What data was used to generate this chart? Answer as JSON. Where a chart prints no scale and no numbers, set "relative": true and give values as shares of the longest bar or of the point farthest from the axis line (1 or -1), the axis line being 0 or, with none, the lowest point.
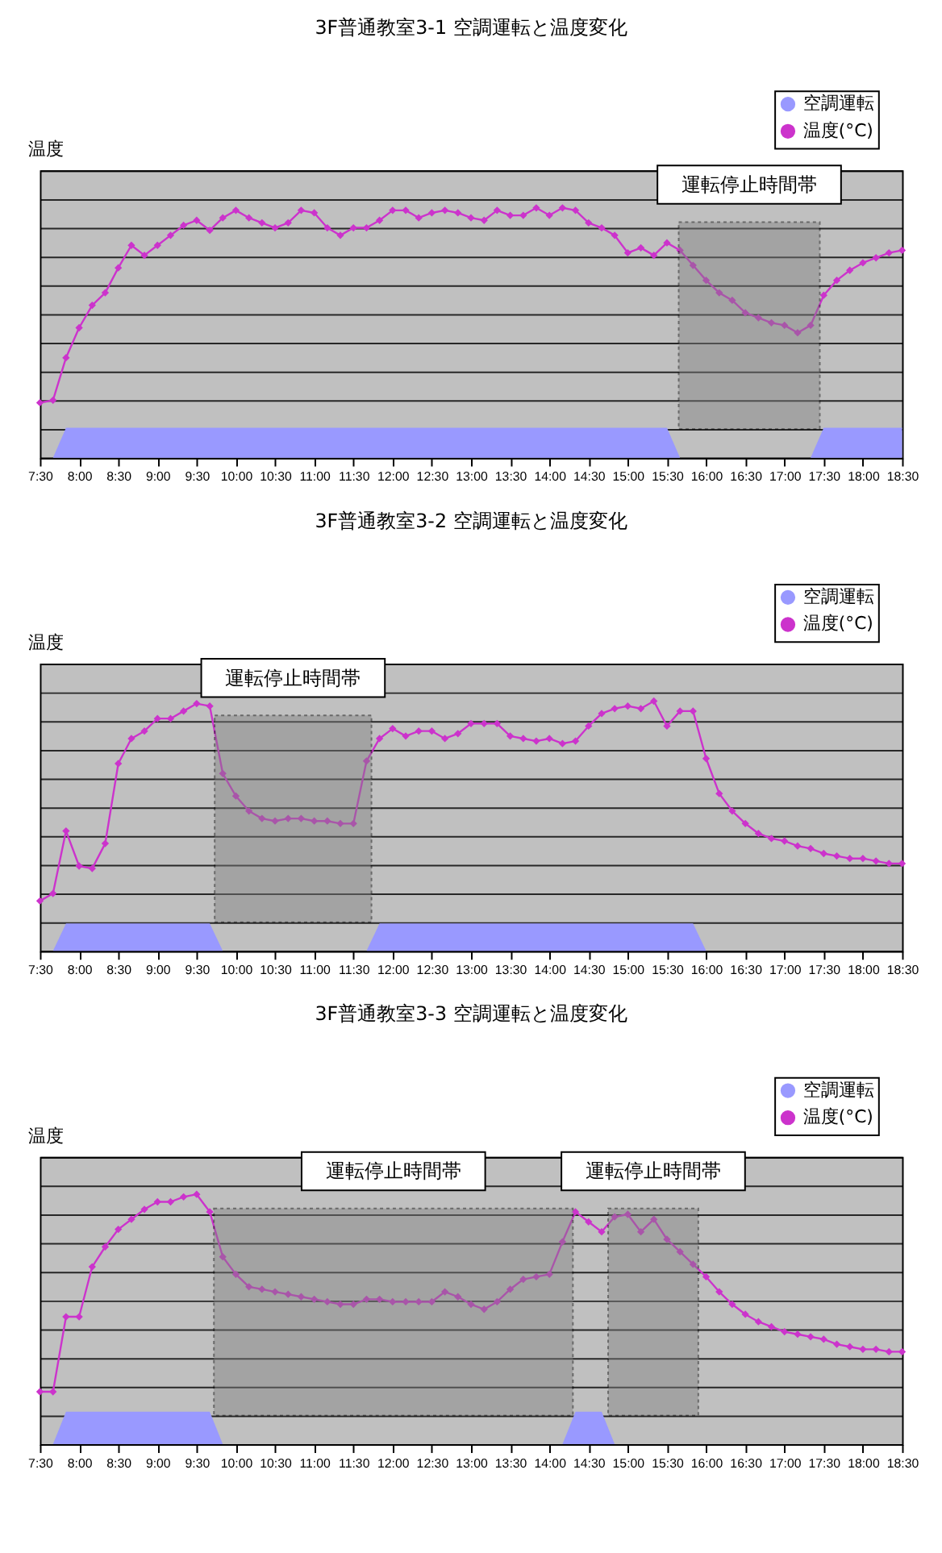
{
  "chart_data": [
    {
      "type": "line",
      "title": "3F普通教室3-1 空調運転と温度変化",
      "ylabel": "温度",
      "relative": true,
      "grid": true,
      "legend": "top right",
      "x": [
        7.5,
        7.667,
        7.833,
        8,
        8.167,
        8.333,
        8.5,
        8.667,
        8.833,
        9,
        9.167,
        9.333,
        9.5,
        9.667,
        9.833,
        10,
        10.167,
        10.333,
        10.5,
        10.667,
        10.833,
        11,
        11.167,
        11.333,
        11.5,
        11.667,
        11.833,
        12,
        12.167,
        12.333,
        12.5,
        12.667,
        12.833,
        13,
        13.167,
        13.333,
        13.5,
        13.667,
        13.833,
        14,
        14.167,
        14.333,
        14.5,
        14.667,
        14.833,
        15,
        15.167,
        15.333,
        15.5,
        15.667,
        15.833,
        16,
        16.167,
        16.333,
        16.5,
        16.667,
        16.833,
        17,
        17.167,
        17.333,
        17.5,
        17.667,
        17.833,
        18,
        18.167,
        18.333,
        18.5
      ],
      "xlim": [
        7.5,
        18.5
      ],
      "xticks": [
        {
          "value": 7.5,
          "label": "7:30"
        },
        {
          "value": 8,
          "label": "8:00"
        },
        {
          "value": 8.5,
          "label": "8:30"
        },
        {
          "value": 9,
          "label": "9:00"
        },
        {
          "value": 9.5,
          "label": "9:30"
        },
        {
          "value": 10,
          "label": "10:00"
        },
        {
          "value": 10.5,
          "label": "10:30"
        },
        {
          "value": 11,
          "label": "11:00"
        },
        {
          "value": 11.5,
          "label": "11:30"
        },
        {
          "value": 12,
          "label": "12:00"
        },
        {
          "value": 12.5,
          "label": "12:30"
        },
        {
          "value": 13,
          "label": "13:00"
        },
        {
          "value": 13.5,
          "label": "13:30"
        },
        {
          "value": 14,
          "label": "14:00"
        },
        {
          "value": 14.5,
          "label": "14:30"
        },
        {
          "value": 15,
          "label": "15:00"
        },
        {
          "value": 15.5,
          "label": "15:30"
        },
        {
          "value": 16,
          "label": "16:00"
        },
        {
          "value": 16.5,
          "label": "16:30"
        },
        {
          "value": 17,
          "label": "17:00"
        },
        {
          "value": 17.5,
          "label": "17:30"
        },
        {
          "value": 18,
          "label": "18:00"
        },
        {
          "value": 18.5,
          "label": "18:30"
        }
      ],
      "series": [
        {
          "name": "空調運転",
          "type": "area",
          "color": "#9999ff",
          "values": [
            0,
            0,
            0.12,
            0.12,
            0.12,
            0.12,
            0.12,
            0.12,
            0.12,
            0.12,
            0.12,
            0.12,
            0.12,
            0.12,
            0.12,
            0.12,
            0.12,
            0.12,
            0.12,
            0.12,
            0.12,
            0.12,
            0.12,
            0.12,
            0.12,
            0.12,
            0.12,
            0.12,
            0.12,
            0.12,
            0.12,
            0.12,
            0.12,
            0.12,
            0.12,
            0.12,
            0.12,
            0.12,
            0.12,
            0.12,
            0.12,
            0.12,
            0.12,
            0.12,
            0.12,
            0.12,
            0.12,
            0.12,
            0.12,
            0,
            0,
            0,
            0,
            0,
            0,
            0,
            0,
            0,
            0,
            0,
            0.12,
            0.12,
            0.12,
            0.12,
            0.12,
            0.12,
            0.12
          ]
        },
        {
          "name": "温度(°C)",
          "marker": "diamond",
          "color": "#cc33cc",
          "values": [
            0.22,
            0.23,
            0.4,
            0.52,
            0.61,
            0.66,
            0.76,
            0.85,
            0.81,
            0.85,
            0.89,
            0.93,
            0.95,
            0.91,
            0.96,
            0.99,
            0.96,
            0.94,
            0.92,
            0.94,
            0.99,
            0.98,
            0.92,
            0.89,
            0.92,
            0.92,
            0.95,
            0.99,
            0.99,
            0.96,
            0.98,
            0.99,
            0.98,
            0.96,
            0.95,
            0.99,
            0.97,
            0.97,
            1.0,
            0.97,
            1.0,
            0.99,
            0.94,
            0.92,
            0.89,
            0.82,
            0.84,
            0.81,
            0.86,
            0.83,
            0.77,
            0.71,
            0.66,
            0.63,
            0.58,
            0.56,
            0.54,
            0.53,
            0.5,
            0.53,
            0.65,
            0.71,
            0.75,
            0.78,
            0.8,
            0.82,
            0.83
          ]
        }
      ],
      "bands": [
        {
          "axis": "x",
          "from": 15.65,
          "to": 17.45,
          "label": "運転停止時間帯"
        }
      ]
    },
    {
      "type": "line",
      "title": "3F普通教室3-2 空調運転と温度変化",
      "ylabel": "温度",
      "relative": true,
      "grid": true,
      "legend": "top right",
      "x": [
        7.5,
        7.667,
        7.833,
        8,
        8.167,
        8.333,
        8.5,
        8.667,
        8.833,
        9,
        9.167,
        9.333,
        9.5,
        9.667,
        9.833,
        10,
        10.167,
        10.333,
        10.5,
        10.667,
        10.833,
        11,
        11.167,
        11.333,
        11.5,
        11.667,
        11.833,
        12,
        12.167,
        12.333,
        12.5,
        12.667,
        12.833,
        13,
        13.167,
        13.333,
        13.5,
        13.667,
        13.833,
        14,
        14.167,
        14.333,
        14.5,
        14.667,
        14.833,
        15,
        15.167,
        15.333,
        15.5,
        15.667,
        15.833,
        16,
        16.167,
        16.333,
        16.5,
        16.667,
        16.833,
        17,
        17.167,
        17.333,
        17.5,
        17.667,
        17.833,
        18,
        18.167,
        18.333,
        18.5
      ],
      "xlim": [
        7.5,
        18.5
      ],
      "xticks": [
        {
          "value": 7.5,
          "label": "7:30"
        },
        {
          "value": 8,
          "label": "8:00"
        },
        {
          "value": 8.5,
          "label": "8:30"
        },
        {
          "value": 9,
          "label": "9:00"
        },
        {
          "value": 9.5,
          "label": "9:30"
        },
        {
          "value": 10,
          "label": "10:00"
        },
        {
          "value": 10.5,
          "label": "10:30"
        },
        {
          "value": 11,
          "label": "11:00"
        },
        {
          "value": 11.5,
          "label": "11:30"
        },
        {
          "value": 12,
          "label": "12:00"
        },
        {
          "value": 12.5,
          "label": "12:30"
        },
        {
          "value": 13,
          "label": "13:00"
        },
        {
          "value": 13.5,
          "label": "13:30"
        },
        {
          "value": 14,
          "label": "14:00"
        },
        {
          "value": 14.5,
          "label": "14:30"
        },
        {
          "value": 15,
          "label": "15:00"
        },
        {
          "value": 15.5,
          "label": "15:30"
        },
        {
          "value": 16,
          "label": "16:00"
        },
        {
          "value": 16.5,
          "label": "16:30"
        },
        {
          "value": 17,
          "label": "17:00"
        },
        {
          "value": 17.5,
          "label": "17:30"
        },
        {
          "value": 18,
          "label": "18:00"
        },
        {
          "value": 18.5,
          "label": "18:30"
        }
      ],
      "series": [
        {
          "name": "空調運転",
          "type": "area",
          "color": "#9999ff",
          "values": [
            0,
            0,
            0.11,
            0.11,
            0.11,
            0.11,
            0.11,
            0.11,
            0.11,
            0.11,
            0.11,
            0.11,
            0.11,
            0.11,
            0,
            0,
            0,
            0,
            0,
            0,
            0,
            0,
            0,
            0,
            0,
            0,
            0.11,
            0.11,
            0.11,
            0.11,
            0.11,
            0.11,
            0.11,
            0.11,
            0.11,
            0.11,
            0.11,
            0.11,
            0.11,
            0.11,
            0.11,
            0.11,
            0.11,
            0.11,
            0.11,
            0.11,
            0.11,
            0.11,
            0.11,
            0.11,
            0.11,
            0,
            0,
            0,
            0,
            0,
            0,
            0,
            0,
            0,
            0,
            0,
            0,
            0,
            0,
            0,
            0
          ]
        },
        {
          "name": "温度(°C)",
          "marker": "diamond",
          "color": "#cc33cc",
          "values": [
            0.2,
            0.23,
            0.48,
            0.34,
            0.33,
            0.43,
            0.75,
            0.85,
            0.88,
            0.93,
            0.93,
            0.96,
            0.99,
            0.98,
            0.71,
            0.62,
            0.56,
            0.53,
            0.52,
            0.53,
            0.53,
            0.52,
            0.52,
            0.51,
            0.51,
            0.76,
            0.85,
            0.89,
            0.86,
            0.88,
            0.88,
            0.85,
            0.87,
            0.91,
            0.91,
            0.91,
            0.86,
            0.85,
            0.84,
            0.85,
            0.83,
            0.84,
            0.9,
            0.95,
            0.97,
            0.98,
            0.97,
            1.0,
            0.9,
            0.96,
            0.96,
            0.77,
            0.63,
            0.56,
            0.51,
            0.47,
            0.45,
            0.44,
            0.42,
            0.41,
            0.39,
            0.38,
            0.37,
            0.37,
            0.36,
            0.35,
            0.35
          ]
        }
      ],
      "bands": [
        {
          "axis": "x",
          "from": 9.73,
          "to": 11.73,
          "label": "運転停止時間帯"
        }
      ]
    },
    {
      "type": "line",
      "title": "3F普通教室3-3 空調運転と温度変化",
      "ylabel": "温度",
      "relative": true,
      "grid": true,
      "legend": "top right",
      "x": [
        7.5,
        7.667,
        7.833,
        8,
        8.167,
        8.333,
        8.5,
        8.667,
        8.833,
        9,
        9.167,
        9.333,
        9.5,
        9.667,
        9.833,
        10,
        10.167,
        10.333,
        10.5,
        10.667,
        10.833,
        11,
        11.167,
        11.333,
        11.5,
        11.667,
        11.833,
        12,
        12.167,
        12.333,
        12.5,
        12.667,
        12.833,
        13,
        13.167,
        13.333,
        13.5,
        13.667,
        13.833,
        14,
        14.167,
        14.333,
        14.5,
        14.667,
        14.833,
        15,
        15.167,
        15.333,
        15.5,
        15.667,
        15.833,
        16,
        16.167,
        16.333,
        16.5,
        16.667,
        16.833,
        17,
        17.167,
        17.333,
        17.5,
        17.667,
        17.833,
        18,
        18.167,
        18.333,
        18.5
      ],
      "xlim": [
        7.5,
        18.5
      ],
      "xticks": [
        {
          "value": 7.5,
          "label": "7:30"
        },
        {
          "value": 8,
          "label": "8:00"
        },
        {
          "value": 8.5,
          "label": "8:30"
        },
        {
          "value": 9,
          "label": "9:00"
        },
        {
          "value": 9.5,
          "label": "9:30"
        },
        {
          "value": 10,
          "label": "10:00"
        },
        {
          "value": 10.5,
          "label": "10:30"
        },
        {
          "value": 11,
          "label": "11:00"
        },
        {
          "value": 11.5,
          "label": "11:30"
        },
        {
          "value": 12,
          "label": "12:00"
        },
        {
          "value": 12.5,
          "label": "12:30"
        },
        {
          "value": 13,
          "label": "13:00"
        },
        {
          "value": 13.5,
          "label": "13:30"
        },
        {
          "value": 14,
          "label": "14:00"
        },
        {
          "value": 14.5,
          "label": "14:30"
        },
        {
          "value": 15,
          "label": "15:00"
        },
        {
          "value": 15.5,
          "label": "15:30"
        },
        {
          "value": 16,
          "label": "16:00"
        },
        {
          "value": 16.5,
          "label": "16:30"
        },
        {
          "value": 17,
          "label": "17:00"
        },
        {
          "value": 17.5,
          "label": "17:30"
        },
        {
          "value": 18,
          "label": "18:00"
        },
        {
          "value": 18.5,
          "label": "18:30"
        }
      ],
      "series": [
        {
          "name": "空調運転",
          "type": "area",
          "color": "#9999ff",
          "values": [
            0,
            0,
            0.13,
            0.13,
            0.13,
            0.13,
            0.13,
            0.13,
            0.13,
            0.13,
            0.13,
            0.13,
            0.13,
            0.13,
            0,
            0,
            0,
            0,
            0,
            0,
            0,
            0,
            0,
            0,
            0,
            0,
            0,
            0,
            0,
            0,
            0,
            0,
            0,
            0,
            0,
            0,
            0,
            0,
            0,
            0,
            0,
            0.13,
            0.13,
            0.13,
            0,
            0,
            0,
            0,
            0,
            0,
            0,
            0,
            0,
            0,
            0,
            0,
            0,
            0,
            0,
            0,
            0,
            0,
            0,
            0,
            0,
            0,
            0
          ]
        },
        {
          "name": "温度(°C)",
          "marker": "diamond",
          "color": "#cc33cc",
          "values": [
            0.21,
            0.21,
            0.51,
            0.51,
            0.71,
            0.79,
            0.86,
            0.9,
            0.94,
            0.97,
            0.97,
            0.99,
            1.0,
            0.93,
            0.75,
            0.68,
            0.63,
            0.62,
            0.61,
            0.6,
            0.59,
            0.58,
            0.57,
            0.56,
            0.56,
            0.58,
            0.58,
            0.57,
            0.57,
            0.57,
            0.57,
            0.61,
            0.59,
            0.56,
            0.54,
            0.57,
            0.62,
            0.66,
            0.67,
            0.68,
            0.81,
            0.93,
            0.89,
            0.85,
            0.91,
            0.92,
            0.85,
            0.9,
            0.82,
            0.77,
            0.72,
            0.67,
            0.61,
            0.56,
            0.52,
            0.49,
            0.47,
            0.45,
            0.44,
            0.43,
            0.42,
            0.4,
            0.39,
            0.38,
            0.38,
            0.37,
            0.37
          ]
        }
      ],
      "bands": [
        {
          "axis": "x",
          "from": 9.72,
          "to": 14.3,
          "label": "運転停止時間帯"
        },
        {
          "axis": "x",
          "from": 14.75,
          "to": 15.9,
          "label": "運転停止時間帯"
        }
      ]
    }
  ]
}
